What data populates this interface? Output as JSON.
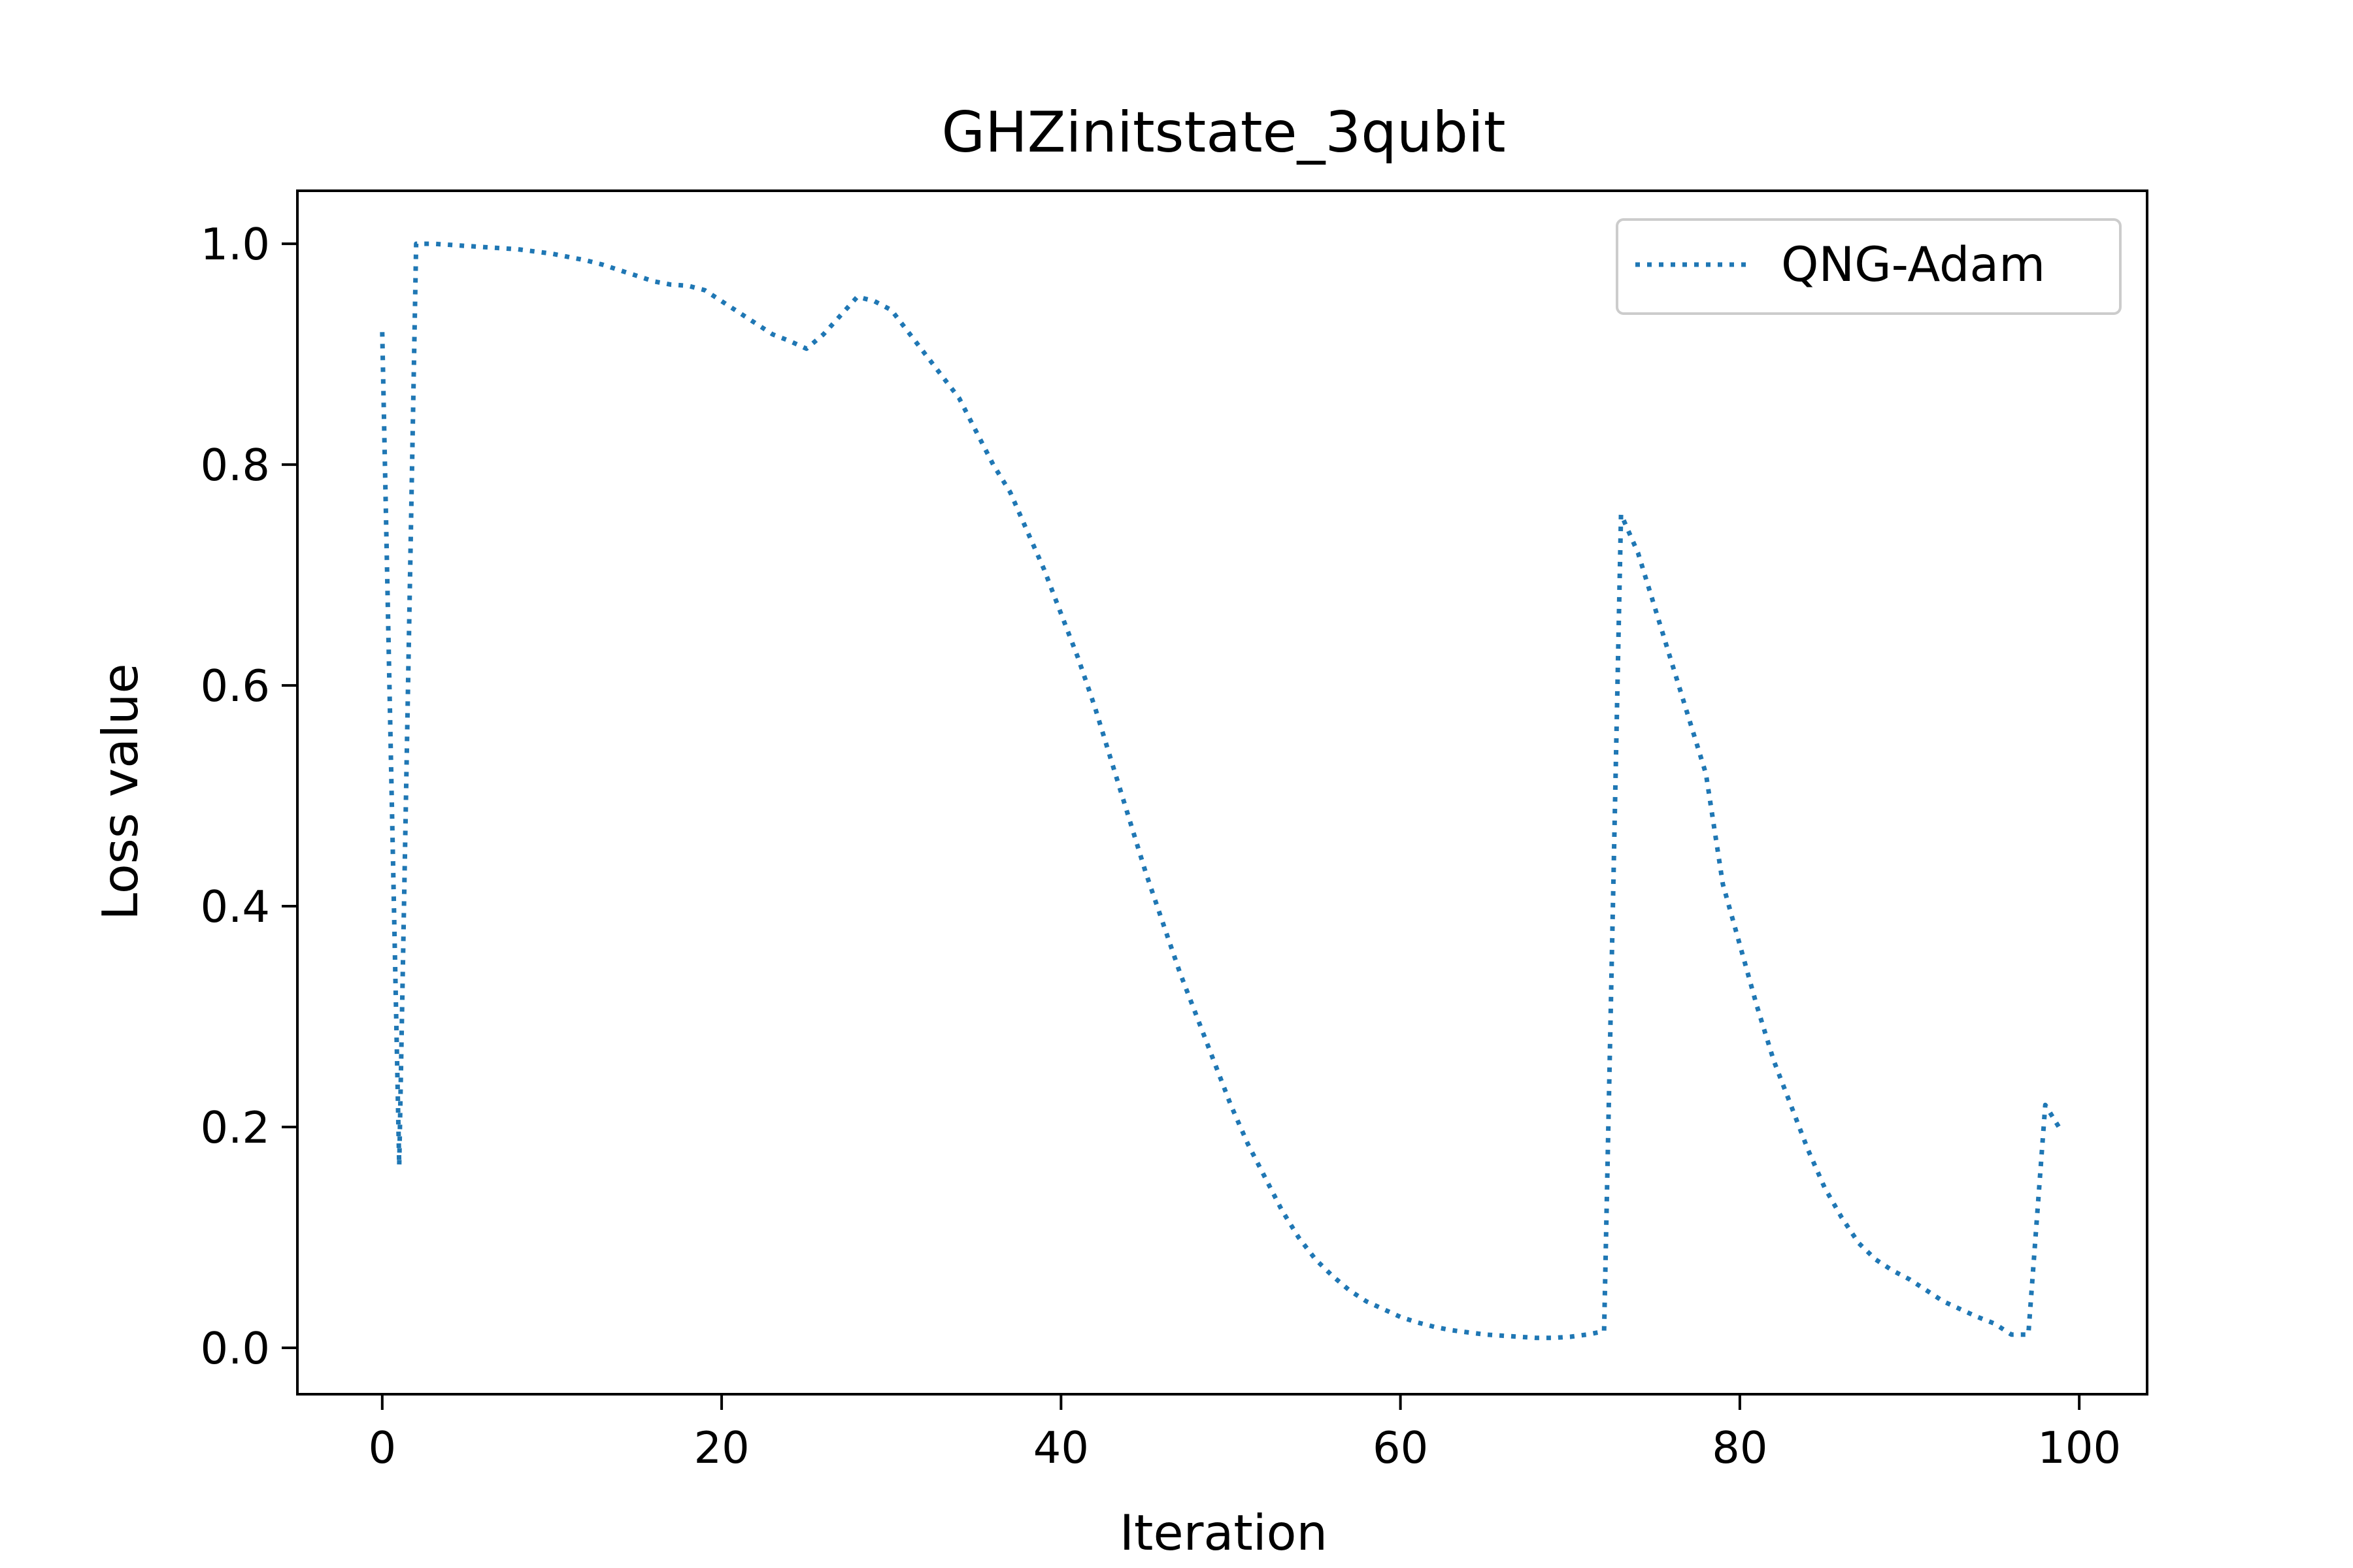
{
  "chart_data": {
    "type": "line",
    "title": "GHZinitstate_3qubit",
    "xlabel": "Iteration",
    "ylabel": "Loss value",
    "xlim": [
      -5,
      104
    ],
    "ylim": [
      -0.042,
      1.048
    ],
    "xticks": [
      0,
      20,
      40,
      60,
      80,
      100
    ],
    "xtick_labels": [
      "0",
      "20",
      "40",
      "60",
      "80",
      "100"
    ],
    "yticks": [
      0.0,
      0.2,
      0.4,
      0.6,
      0.8,
      1.0
    ],
    "ytick_labels": [
      "0.0",
      "0.2",
      "0.4",
      "0.6",
      "0.8",
      "1.0"
    ],
    "grid": false,
    "legend_position": "top-right",
    "series": [
      {
        "name": "QNG-Adam",
        "color": "#1f77b4",
        "line_style": "dotted",
        "x": [
          0,
          1,
          2,
          3,
          4,
          5,
          6,
          7,
          8,
          9,
          10,
          11,
          12,
          13,
          14,
          15,
          16,
          17,
          18,
          19,
          20,
          21,
          22,
          23,
          24,
          25,
          26,
          27,
          28,
          29,
          30,
          31,
          32,
          33,
          34,
          35,
          36,
          37,
          38,
          39,
          40,
          41,
          42,
          43,
          44,
          45,
          46,
          47,
          48,
          49,
          50,
          51,
          52,
          53,
          54,
          55,
          56,
          57,
          58,
          59,
          60,
          61,
          62,
          63,
          64,
          65,
          66,
          67,
          68,
          69,
          70,
          71,
          72,
          73,
          74,
          75,
          76,
          77,
          78,
          79,
          80,
          81,
          82,
          83,
          84,
          85,
          86,
          87,
          88,
          89,
          90,
          91,
          92,
          93,
          94,
          95,
          96,
          97,
          98,
          99
        ],
        "y": [
          0.92,
          0.165,
          1.0,
          1.0,
          0.999,
          0.998,
          0.997,
          0.996,
          0.995,
          0.993,
          0.991,
          0.988,
          0.985,
          0.981,
          0.976,
          0.971,
          0.966,
          0.963,
          0.962,
          0.958,
          0.948,
          0.938,
          0.928,
          0.918,
          0.912,
          0.905,
          0.918,
          0.935,
          0.952,
          0.948,
          0.94,
          0.92,
          0.9,
          0.88,
          0.86,
          0.83,
          0.8,
          0.775,
          0.74,
          0.705,
          0.665,
          0.625,
          0.58,
          0.53,
          0.48,
          0.43,
          0.385,
          0.34,
          0.3,
          0.26,
          0.22,
          0.185,
          0.155,
          0.125,
          0.1,
          0.08,
          0.065,
          0.052,
          0.042,
          0.035,
          0.028,
          0.023,
          0.019,
          0.016,
          0.014,
          0.012,
          0.011,
          0.01,
          0.009,
          0.009,
          0.01,
          0.012,
          0.015,
          0.755,
          0.72,
          0.67,
          0.62,
          0.57,
          0.52,
          0.42,
          0.365,
          0.31,
          0.26,
          0.22,
          0.18,
          0.145,
          0.118,
          0.095,
          0.08,
          0.07,
          0.062,
          0.052,
          0.042,
          0.035,
          0.028,
          0.022,
          0.012,
          0.012,
          0.22,
          0.195
        ]
      }
    ]
  }
}
